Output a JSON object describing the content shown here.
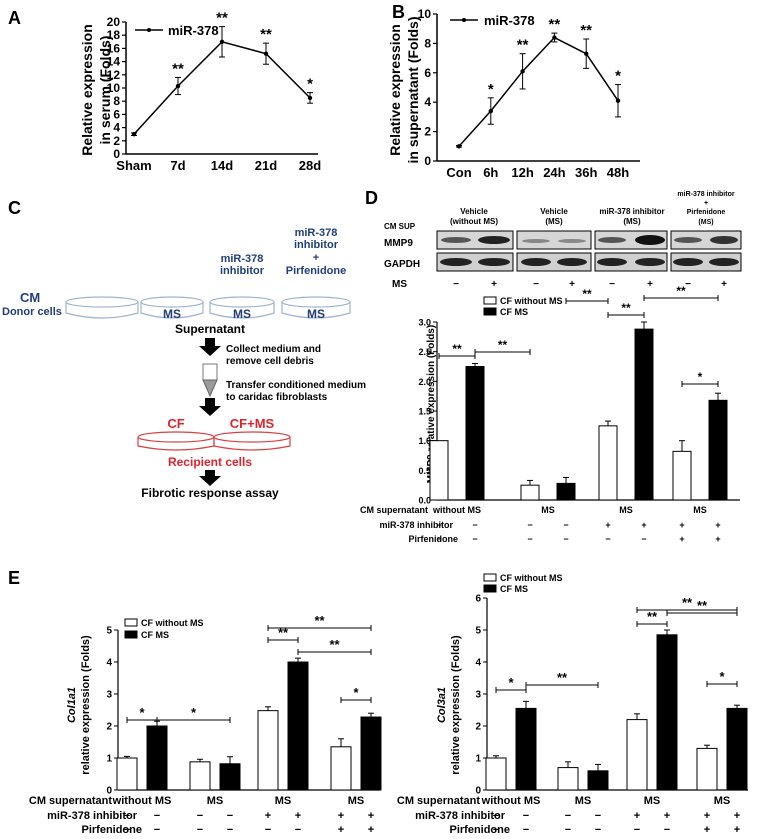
{
  "panels": {
    "A": "A",
    "B": "B",
    "C": "C",
    "D": "D",
    "E": "E"
  },
  "chart_data": [
    {
      "id": "A",
      "type": "line",
      "series_name": "miR-378",
      "ylabel_1": "Relative expression",
      "ylabel_2": "in serum (Folds)",
      "categories": [
        "Sham",
        "7d",
        "14d",
        "21d",
        "28d"
      ],
      "values": [
        3,
        10.3,
        17,
        15.2,
        8.5
      ],
      "errors": [
        0.2,
        1.3,
        2.3,
        1.6,
        0.8
      ],
      "sig": [
        "",
        "**",
        "**",
        "**",
        "*"
      ],
      "ylim": [
        0,
        20
      ],
      "yticks": [
        0,
        2,
        4,
        6,
        8,
        10,
        12,
        14,
        16,
        18,
        20
      ]
    },
    {
      "id": "B",
      "type": "line",
      "series_name": "miR-378",
      "ylabel_1": "Relative expression",
      "ylabel_2": "in supernatant (Folds)",
      "categories": [
        "Con",
        "6h",
        "12h",
        "24h",
        "36h",
        "48h"
      ],
      "values": [
        1,
        3.4,
        6.1,
        8.4,
        7.3,
        4.1
      ],
      "errors": [
        0.05,
        0.9,
        1.2,
        0.3,
        1.0,
        1.1
      ],
      "sig": [
        "",
        "*",
        "**",
        "**",
        "**",
        "*"
      ],
      "ylim": [
        0,
        10
      ],
      "yticks": [
        0,
        2,
        4,
        6,
        8,
        10
      ]
    },
    {
      "id": "D",
      "type": "bar",
      "ylabel": "MMP9 relative expression (Folds)",
      "series": [
        {
          "name": "CF without MS",
          "values": [
            1.0,
            0.25,
            1.25,
            0.82
          ],
          "errors": [
            0,
            0.08,
            0.08,
            0.18
          ]
        },
        {
          "name": "CF MS",
          "values": [
            2.25,
            0.28,
            2.88,
            1.68
          ],
          "errors": [
            0.05,
            0.1,
            0.12,
            0.12
          ]
        }
      ],
      "ylim": [
        0,
        3
      ],
      "yticks": [
        "0.0",
        "0.5",
        "1.0",
        "1.5",
        "2.0",
        "2.5",
        "3.0"
      ]
    },
    {
      "id": "E1",
      "type": "bar",
      "ylabel_gene": "Col1a1",
      "ylabel": "relative expression (Folds)",
      "series": [
        {
          "name": "CF without MS",
          "values": [
            1.0,
            0.88,
            2.48,
            1.35
          ],
          "errors": [
            0.05,
            0.08,
            0.12,
            0.25
          ]
        },
        {
          "name": "CF MS",
          "values": [
            2.0,
            0.82,
            4.0,
            2.28
          ],
          "errors": [
            0.15,
            0.22,
            0.12,
            0.12
          ]
        }
      ],
      "ylim": [
        0,
        5
      ],
      "yticks": [
        "0",
        "1",
        "2",
        "3",
        "4",
        "5"
      ]
    },
    {
      "id": "E2",
      "type": "bar",
      "ylabel_gene": "Col3a1",
      "ylabel": "relative expression (Folds)",
      "series": [
        {
          "name": "CF without MS",
          "values": [
            1.0,
            0.7,
            2.2,
            1.3
          ],
          "errors": [
            0.07,
            0.18,
            0.18,
            0.1
          ]
        },
        {
          "name": "CF MS",
          "values": [
            2.55,
            0.6,
            4.85,
            2.55
          ],
          "errors": [
            0.22,
            0.2,
            0.15,
            0.1
          ]
        }
      ],
      "ylim": [
        0,
        6
      ],
      "yticks": [
        "0",
        "1",
        "2",
        "3",
        "4",
        "5",
        "6"
      ]
    }
  ],
  "stats": {
    "double": "**",
    "single": "*"
  },
  "condition_table": {
    "row1_label": "CM supernatant",
    "row2_label": "miR-378 inhibitor",
    "row3_label": "Pirfenidone",
    "group_labels": [
      "without MS",
      "MS",
      "MS",
      "MS"
    ],
    "row2": [
      "−",
      "−",
      "−",
      "−",
      "+",
      "+",
      "+",
      "+"
    ],
    "row3": [
      "−",
      "−",
      "−",
      "−",
      "−",
      "−",
      "+",
      "+"
    ]
  },
  "western": {
    "cm_sup": "CM SUP",
    "groups": [
      {
        "line1": "Vehicle",
        "line2": "(without MS)"
      },
      {
        "line1": "Vehicle",
        "line2": "(MS)"
      },
      {
        "line1": "miR-378 inhibitor",
        "line2": "(MS)"
      },
      {
        "line1": "miR-378 inhibitor",
        "line2": "+",
        "line3": "Pirfenidone",
        "line4": "(MS)"
      }
    ],
    "bands": [
      "MMP9",
      "GAPDH"
    ],
    "ms_label": "MS",
    "ms_row": [
      "−",
      "+",
      "−",
      "+",
      "−",
      "+",
      "−",
      "+"
    ]
  },
  "schematic": {
    "cm": "CM",
    "donor": "Donor cells",
    "inhibitor_label_1": "miR-378",
    "inhibitor_label_2": "inhibitor",
    "pirf_label_1": "miR-378",
    "pirf_label_2": "inhibitor",
    "pirf_label_3": "+",
    "pirf_label_4": "Pirfenidone",
    "ms": "MS",
    "supernatant": "Supernatant",
    "step1_a": "Collect medium and",
    "step1_b": "remove cell debris",
    "step2_a": "Transfer conditioned medium",
    "step2_b": "to caridac fibroblasts",
    "cf": "CF",
    "cf_ms": "CF+MS",
    "recipient": "Recipient cells",
    "assay": "Fibrotic response assay"
  },
  "colors": {
    "blue": "#1f3d7a",
    "red": "#e0242b",
    "black": "#000000",
    "dish_blue": "#9fb3cf",
    "dish_red": "#d94040"
  }
}
